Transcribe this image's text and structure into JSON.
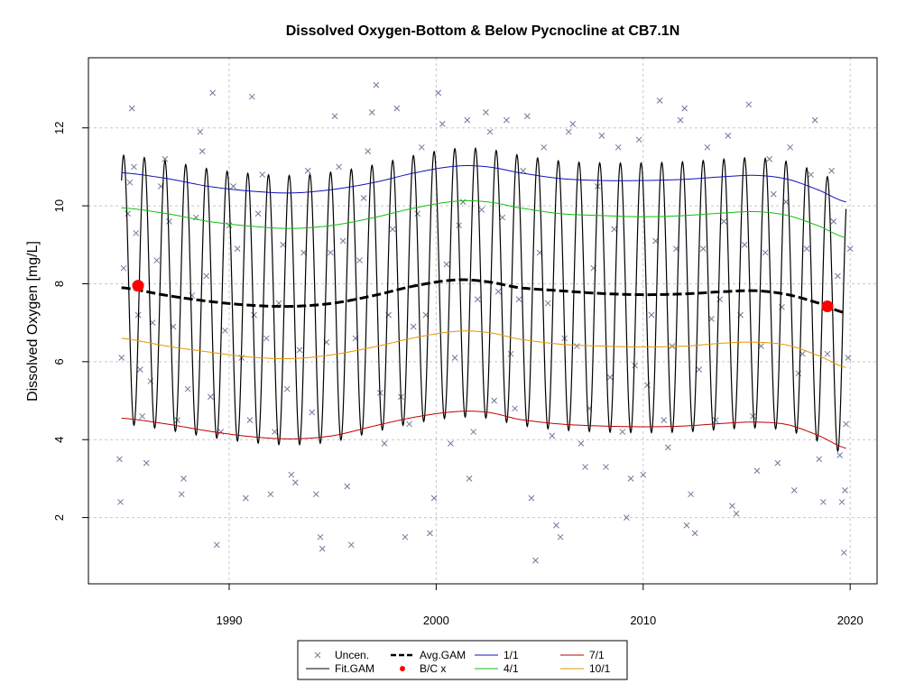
{
  "chart_data": {
    "type": "line",
    "title": "Dissolved Oxygen-Bottom & Below Pycnocline at CB7.1N",
    "xlabel": "",
    "ylabel": "Dissolved Oxygen [mg/L]",
    "xlim": [
      1983.2,
      2021.3
    ],
    "ylim": [
      0.3,
      13.8
    ],
    "x_ticks": [
      1990,
      2000,
      2010,
      2020
    ],
    "x_tick_labels": [
      "1990",
      "2000",
      "2010",
      "2020"
    ],
    "y_ticks": [
      2,
      4,
      6,
      8,
      10,
      12
    ],
    "y_tick_labels": [
      "2",
      "4",
      "6",
      "8",
      "10",
      "12"
    ],
    "grid": true,
    "legend_placement": "bottom",
    "colors": {
      "uncen": "#6b7a99",
      "fit": "#000000",
      "avg": "#000000",
      "bc": "#ff0000",
      "p1_1": "#1010b8",
      "p4_1": "#10c010",
      "p7_1": "#c00000",
      "p10_1": "#e69500"
    },
    "legend": [
      {
        "label": "Uncen.",
        "key": "uncen"
      },
      {
        "label": "Avg.GAM",
        "key": "avg"
      },
      {
        "label": "1/1",
        "key": "p1_1"
      },
      {
        "label": "7/1",
        "key": "p7_1"
      },
      {
        "label": "Fit.GAM",
        "key": "fit"
      },
      {
        "label": "B/C x",
        "key": "bc"
      },
      {
        "label": "4/1",
        "key": "p4_1"
      },
      {
        "label": "10/1",
        "key": "p10_1"
      }
    ],
    "series": [
      {
        "name": "1/1",
        "x": [
          1984.8,
          1987,
          1989,
          1991,
          1993,
          1995,
          1997,
          1999,
          2001,
          2002.5,
          2004,
          2006,
          2008,
          2010,
          2012,
          2014,
          2015.5,
          2017,
          2018.5,
          2019.8
        ],
        "values": [
          10.85,
          10.7,
          10.5,
          10.38,
          10.33,
          10.42,
          10.6,
          10.85,
          11.02,
          11.0,
          10.85,
          10.7,
          10.65,
          10.65,
          10.68,
          10.75,
          10.78,
          10.68,
          10.4,
          10.1
        ]
      },
      {
        "name": "4/1",
        "x": [
          1984.8,
          1987,
          1989,
          1991,
          1993,
          1995,
          1997,
          1999,
          2001,
          2002.5,
          2004,
          2006,
          2008,
          2010,
          2012,
          2014,
          2015.5,
          2017,
          2018.5,
          2019.8
        ],
        "values": [
          9.95,
          9.8,
          9.6,
          9.48,
          9.42,
          9.5,
          9.7,
          9.95,
          10.12,
          10.1,
          9.95,
          9.8,
          9.75,
          9.72,
          9.75,
          9.82,
          9.85,
          9.75,
          9.48,
          9.18
        ]
      },
      {
        "name": "Avg.GAM",
        "x": [
          1984.8,
          1987,
          1989,
          1991,
          1993,
          1995,
          1997,
          1999,
          2001,
          2002.5,
          2004,
          2006,
          2008,
          2010,
          2012,
          2014,
          2015.5,
          2017,
          2018.5,
          2019.8
        ],
        "values": [
          7.9,
          7.7,
          7.55,
          7.45,
          7.42,
          7.5,
          7.7,
          7.95,
          8.1,
          8.05,
          7.9,
          7.82,
          7.75,
          7.72,
          7.74,
          7.8,
          7.82,
          7.72,
          7.5,
          7.25
        ]
      },
      {
        "name": "10/1",
        "x": [
          1984.8,
          1987,
          1989,
          1991,
          1993,
          1995,
          1997,
          1999,
          2001,
          2002.5,
          2004,
          2006,
          2008,
          2010,
          2012,
          2014,
          2015.5,
          2017,
          2018.5,
          2019.8
        ],
        "values": [
          6.6,
          6.4,
          6.25,
          6.12,
          6.08,
          6.18,
          6.38,
          6.62,
          6.78,
          6.75,
          6.58,
          6.45,
          6.4,
          6.38,
          6.4,
          6.48,
          6.5,
          6.42,
          6.15,
          5.85
        ]
      },
      {
        "name": "7/1",
        "x": [
          1984.8,
          1987,
          1989,
          1991,
          1993,
          1995,
          1997,
          1999,
          2001,
          2002.5,
          2004,
          2006,
          2008,
          2010,
          2012,
          2014,
          2015.5,
          2017,
          2018.5,
          2019.8
        ],
        "values": [
          4.55,
          4.4,
          4.22,
          4.08,
          4.02,
          4.1,
          4.35,
          4.58,
          4.72,
          4.7,
          4.52,
          4.4,
          4.35,
          4.33,
          4.35,
          4.42,
          4.45,
          4.38,
          4.1,
          3.78
        ]
      },
      {
        "name": "Fit.GAM",
        "x_start": 1984.8,
        "x_end": 2019.8,
        "period_years": 1,
        "peak_fraction_of_year": 0.1,
        "description_of_shape": "seasonal oscillation between the 1/1 and 7/1 curves around Avg.GAM"
      },
      {
        "name": "B/C x",
        "x": [
          1985.6,
          2018.9
        ],
        "values": [
          7.95,
          7.42
        ]
      },
      {
        "name": "Uncen.",
        "points": [
          [
            1984.7,
            3.5
          ],
          [
            1984.75,
            2.4
          ],
          [
            1984.8,
            6.1
          ],
          [
            1984.9,
            8.4
          ],
          [
            1985.1,
            9.8
          ],
          [
            1985.2,
            10.6
          ],
          [
            1985.3,
            12.5
          ],
          [
            1985.4,
            11.0
          ],
          [
            1985.5,
            9.3
          ],
          [
            1985.6,
            7.2
          ],
          [
            1985.7,
            5.8
          ],
          [
            1985.8,
            4.6
          ],
          [
            1986.0,
            3.4
          ],
          [
            1986.2,
            5.5
          ],
          [
            1986.3,
            7.0
          ],
          [
            1986.5,
            8.6
          ],
          [
            1986.7,
            10.5
          ],
          [
            1986.9,
            11.2
          ],
          [
            1987.1,
            9.6
          ],
          [
            1987.3,
            6.9
          ],
          [
            1987.5,
            4.5
          ],
          [
            1987.7,
            2.6
          ],
          [
            1987.8,
            3.0
          ],
          [
            1988.0,
            5.3
          ],
          [
            1988.2,
            7.7
          ],
          [
            1988.4,
            9.7
          ],
          [
            1988.6,
            11.9
          ],
          [
            1988.7,
            11.4
          ],
          [
            1988.9,
            8.2
          ],
          [
            1989.1,
            5.1
          ],
          [
            1989.2,
            12.9
          ],
          [
            1989.4,
            1.3
          ],
          [
            1989.6,
            4.2
          ],
          [
            1989.8,
            6.8
          ],
          [
            1990.0,
            9.5
          ],
          [
            1990.2,
            10.5
          ],
          [
            1990.4,
            8.9
          ],
          [
            1990.6,
            6.1
          ],
          [
            1990.8,
            2.5
          ],
          [
            1991.0,
            4.5
          ],
          [
            1991.1,
            12.8
          ],
          [
            1991.2,
            7.2
          ],
          [
            1991.4,
            9.8
          ],
          [
            1991.6,
            10.8
          ],
          [
            1991.8,
            6.6
          ],
          [
            1992.0,
            2.6
          ],
          [
            1992.2,
            4.2
          ],
          [
            1992.4,
            7.5
          ],
          [
            1992.6,
            9.0
          ],
          [
            1992.8,
            5.3
          ],
          [
            1993.0,
            3.1
          ],
          [
            1993.2,
            2.9
          ],
          [
            1993.4,
            6.3
          ],
          [
            1993.6,
            8.8
          ],
          [
            1993.8,
            10.9
          ],
          [
            1994.0,
            4.7
          ],
          [
            1994.2,
            2.6
          ],
          [
            1994.4,
            1.5
          ],
          [
            1994.5,
            1.2
          ],
          [
            1994.7,
            6.5
          ],
          [
            1994.9,
            8.8
          ],
          [
            1995.1,
            12.3
          ],
          [
            1995.3,
            11.0
          ],
          [
            1995.5,
            9.1
          ],
          [
            1995.7,
            2.8
          ],
          [
            1995.9,
            1.3
          ],
          [
            1996.1,
            6.6
          ],
          [
            1996.3,
            8.6
          ],
          [
            1996.5,
            10.2
          ],
          [
            1996.7,
            11.4
          ],
          [
            1996.9,
            12.4
          ],
          [
            1997.1,
            13.1
          ],
          [
            1997.3,
            5.2
          ],
          [
            1997.5,
            3.9
          ],
          [
            1997.7,
            7.2
          ],
          [
            1997.9,
            9.4
          ],
          [
            1998.1,
            12.5
          ],
          [
            1998.3,
            5.1
          ],
          [
            1998.5,
            1.5
          ],
          [
            1998.7,
            4.4
          ],
          [
            1998.9,
            6.9
          ],
          [
            1999.1,
            9.8
          ],
          [
            1999.3,
            11.5
          ],
          [
            1999.5,
            7.2
          ],
          [
            1999.7,
            1.6
          ],
          [
            1999.9,
            2.5
          ],
          [
            2000.1,
            12.9
          ],
          [
            2000.3,
            12.1
          ],
          [
            2000.5,
            8.5
          ],
          [
            2000.7,
            3.9
          ],
          [
            2000.9,
            6.1
          ],
          [
            2001.1,
            9.5
          ],
          [
            2001.3,
            10.1
          ],
          [
            2001.5,
            12.2
          ],
          [
            2001.6,
            3.0
          ],
          [
            2001.8,
            4.2
          ],
          [
            2002.0,
            7.6
          ],
          [
            2002.2,
            9.9
          ],
          [
            2002.4,
            12.4
          ],
          [
            2002.6,
            11.9
          ],
          [
            2002.8,
            5.0
          ],
          [
            2003.0,
            7.8
          ],
          [
            2003.2,
            9.7
          ],
          [
            2003.4,
            12.2
          ],
          [
            2003.6,
            6.2
          ],
          [
            2003.8,
            4.8
          ],
          [
            2004.0,
            7.6
          ],
          [
            2004.2,
            10.9
          ],
          [
            2004.4,
            12.3
          ],
          [
            2004.6,
            2.5
          ],
          [
            2004.8,
            0.9
          ],
          [
            2005.0,
            8.8
          ],
          [
            2005.2,
            11.5
          ],
          [
            2005.4,
            7.5
          ],
          [
            2005.6,
            4.1
          ],
          [
            2005.8,
            1.8
          ],
          [
            2006.0,
            1.5
          ],
          [
            2006.2,
            6.6
          ],
          [
            2006.4,
            11.9
          ],
          [
            2006.6,
            12.1
          ],
          [
            2006.8,
            6.4
          ],
          [
            2007.0,
            3.9
          ],
          [
            2007.2,
            3.3
          ],
          [
            2007.4,
            4.8
          ],
          [
            2007.6,
            8.4
          ],
          [
            2007.8,
            10.5
          ],
          [
            2008.0,
            11.8
          ],
          [
            2008.2,
            3.3
          ],
          [
            2008.4,
            5.6
          ],
          [
            2008.6,
            9.4
          ],
          [
            2008.8,
            11.5
          ],
          [
            2009.0,
            4.2
          ],
          [
            2009.2,
            2.0
          ],
          [
            2009.4,
            3.0
          ],
          [
            2009.6,
            5.9
          ],
          [
            2009.8,
            11.7
          ],
          [
            2010.0,
            3.1
          ],
          [
            2010.2,
            5.4
          ],
          [
            2010.4,
            7.2
          ],
          [
            2010.6,
            9.1
          ],
          [
            2010.8,
            12.7
          ],
          [
            2011.0,
            4.5
          ],
          [
            2011.2,
            3.8
          ],
          [
            2011.4,
            6.4
          ],
          [
            2011.6,
            8.9
          ],
          [
            2011.8,
            12.2
          ],
          [
            2012.0,
            12.5
          ],
          [
            2012.1,
            1.8
          ],
          [
            2012.3,
            2.6
          ],
          [
            2012.5,
            1.6
          ],
          [
            2012.7,
            5.8
          ],
          [
            2012.9,
            8.9
          ],
          [
            2013.1,
            11.5
          ],
          [
            2013.3,
            7.1
          ],
          [
            2013.5,
            4.5
          ],
          [
            2013.7,
            7.6
          ],
          [
            2013.9,
            9.6
          ],
          [
            2014.1,
            11.8
          ],
          [
            2014.3,
            2.3
          ],
          [
            2014.5,
            2.1
          ],
          [
            2014.7,
            7.2
          ],
          [
            2014.9,
            9.0
          ],
          [
            2015.1,
            12.6
          ],
          [
            2015.3,
            4.6
          ],
          [
            2015.5,
            3.2
          ],
          [
            2015.7,
            6.4
          ],
          [
            2015.9,
            8.8
          ],
          [
            2016.1,
            11.2
          ],
          [
            2016.3,
            10.3
          ],
          [
            2016.5,
            3.4
          ],
          [
            2016.7,
            7.4
          ],
          [
            2016.9,
            10.1
          ],
          [
            2017.1,
            11.5
          ],
          [
            2017.3,
            2.7
          ],
          [
            2017.5,
            5.7
          ],
          [
            2017.7,
            6.2
          ],
          [
            2017.9,
            8.9
          ],
          [
            2018.1,
            10.8
          ],
          [
            2018.3,
            12.2
          ],
          [
            2018.5,
            3.5
          ],
          [
            2018.7,
            2.4
          ],
          [
            2018.9,
            6.2
          ],
          [
            2019.1,
            10.9
          ],
          [
            2019.2,
            9.6
          ],
          [
            2019.4,
            8.2
          ],
          [
            2019.5,
            3.6
          ],
          [
            2019.6,
            2.4
          ],
          [
            2019.7,
            1.1
          ],
          [
            2019.75,
            2.7
          ],
          [
            2019.8,
            4.4
          ],
          [
            2019.9,
            6.1
          ],
          [
            2020.0,
            8.9
          ]
        ]
      }
    ]
  }
}
